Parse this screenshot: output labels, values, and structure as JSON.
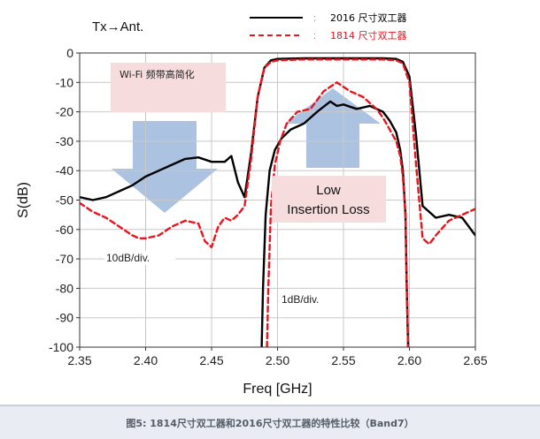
{
  "chart_data": {
    "type": "line",
    "title": "Tx→Ant.",
    "xlabel": "Freq [GHz]",
    "ylabel": "S(dB)",
    "xlim": [
      2.35,
      2.65
    ],
    "ylim": [
      -100,
      0
    ],
    "x_ticks": [
      "2.35",
      "2.40",
      "2.45",
      "2.50",
      "2.55",
      "2.60",
      "2.65"
    ],
    "y_ticks": [
      "0",
      "-10",
      "-20",
      "-30",
      "-40",
      "-50",
      "-60",
      "-70",
      "-80",
      "-90",
      "-100"
    ],
    "grid": true,
    "legend_position": "top-right",
    "colors": {
      "s2016": "#000000",
      "s1814": "#e8141e",
      "arrow": "#9cb8dc",
      "note_bg": "#f6dcdc",
      "grid": "#c8c8c8"
    },
    "series": [
      {
        "name": "2016 尺寸双工器",
        "style": "solid",
        "role": "rejection",
        "x": [
          2.35,
          2.36,
          2.37,
          2.38,
          2.39,
          2.4,
          2.41,
          2.42,
          2.43,
          2.44,
          2.45,
          2.46,
          2.465,
          2.47,
          2.475,
          2.48,
          2.485,
          2.49,
          2.495,
          2.5,
          2.52,
          2.55,
          2.58,
          2.59,
          2.595,
          2.6,
          2.605,
          2.61,
          2.62,
          2.63,
          2.64,
          2.65
        ],
        "y": [
          -49,
          -50,
          -49,
          -47,
          -45,
          -42,
          -40,
          -38,
          -36,
          -35.5,
          -37,
          -37,
          -35,
          -44,
          -49,
          -34,
          -15,
          -5,
          -2.5,
          -2,
          -1.8,
          -1.8,
          -1.8,
          -2,
          -3,
          -8,
          -28,
          -52,
          -56,
          -55,
          -56,
          -62
        ]
      },
      {
        "name": "1814 尺寸双工器",
        "style": "dashed",
        "role": "rejection",
        "x": [
          2.35,
          2.36,
          2.37,
          2.38,
          2.39,
          2.395,
          2.4,
          2.41,
          2.42,
          2.43,
          2.44,
          2.445,
          2.45,
          2.455,
          2.46,
          2.465,
          2.47,
          2.475,
          2.48,
          2.485,
          2.49,
          2.495,
          2.5,
          2.52,
          2.55,
          2.58,
          2.59,
          2.595,
          2.6,
          2.605,
          2.61,
          2.615,
          2.62,
          2.63,
          2.64,
          2.65
        ],
        "y": [
          -51,
          -54,
          -56,
          -59,
          -62,
          -63,
          -63,
          -62,
          -59,
          -57,
          -58,
          -64,
          -66,
          -59,
          -56,
          -57,
          -55,
          -52,
          -36,
          -15,
          -5,
          -3,
          -2.5,
          -2.2,
          -2.2,
          -2.2,
          -2.5,
          -3.5,
          -10,
          -38,
          -63,
          -65,
          -62,
          -57,
          -55,
          -53
        ]
      },
      {
        "name": "2016 尺寸双工器",
        "style": "solid",
        "role": "passband-1dB",
        "x": [
          2.488,
          2.489,
          2.491,
          2.494,
          2.498,
          2.503,
          2.51,
          2.52,
          2.53,
          2.54,
          2.545,
          2.55,
          2.56,
          2.57,
          2.58,
          2.585,
          2.59,
          2.593,
          2.595,
          2.597,
          2.598,
          2.599
        ],
        "y": [
          -100,
          -80,
          -55,
          -40,
          -33,
          -29,
          -26,
          -24,
          -20,
          -16.5,
          -18,
          -17.5,
          -19,
          -18,
          -20,
          -23,
          -27,
          -33,
          -40,
          -55,
          -80,
          -100
        ]
      },
      {
        "name": "1814 尺寸双工器",
        "style": "dashed",
        "role": "passband-1dB",
        "x": [
          2.492,
          2.493,
          2.495,
          2.498,
          2.502,
          2.507,
          2.515,
          2.525,
          2.535,
          2.545,
          2.555,
          2.565,
          2.575,
          2.58,
          2.585,
          2.59,
          2.593,
          2.595,
          2.597,
          2.598,
          2.599
        ],
        "y": [
          -100,
          -80,
          -52,
          -38,
          -30,
          -24,
          -20,
          -19,
          -13,
          -10,
          -13,
          -15,
          -19,
          -22,
          -26,
          -30,
          -35,
          -42,
          -55,
          -80,
          -100
        ]
      }
    ],
    "annotations": {
      "wifi_note": "Wi-Fi 频带高简化",
      "low_il_line1": "Low",
      "low_il_line2": "Insertion Loss",
      "scale_10db": "10dB/div.",
      "scale_1db": "1dB/div."
    },
    "caption": "图5: 1814尺寸双工器和2016尺寸双工器的特性比较（Band7）"
  }
}
